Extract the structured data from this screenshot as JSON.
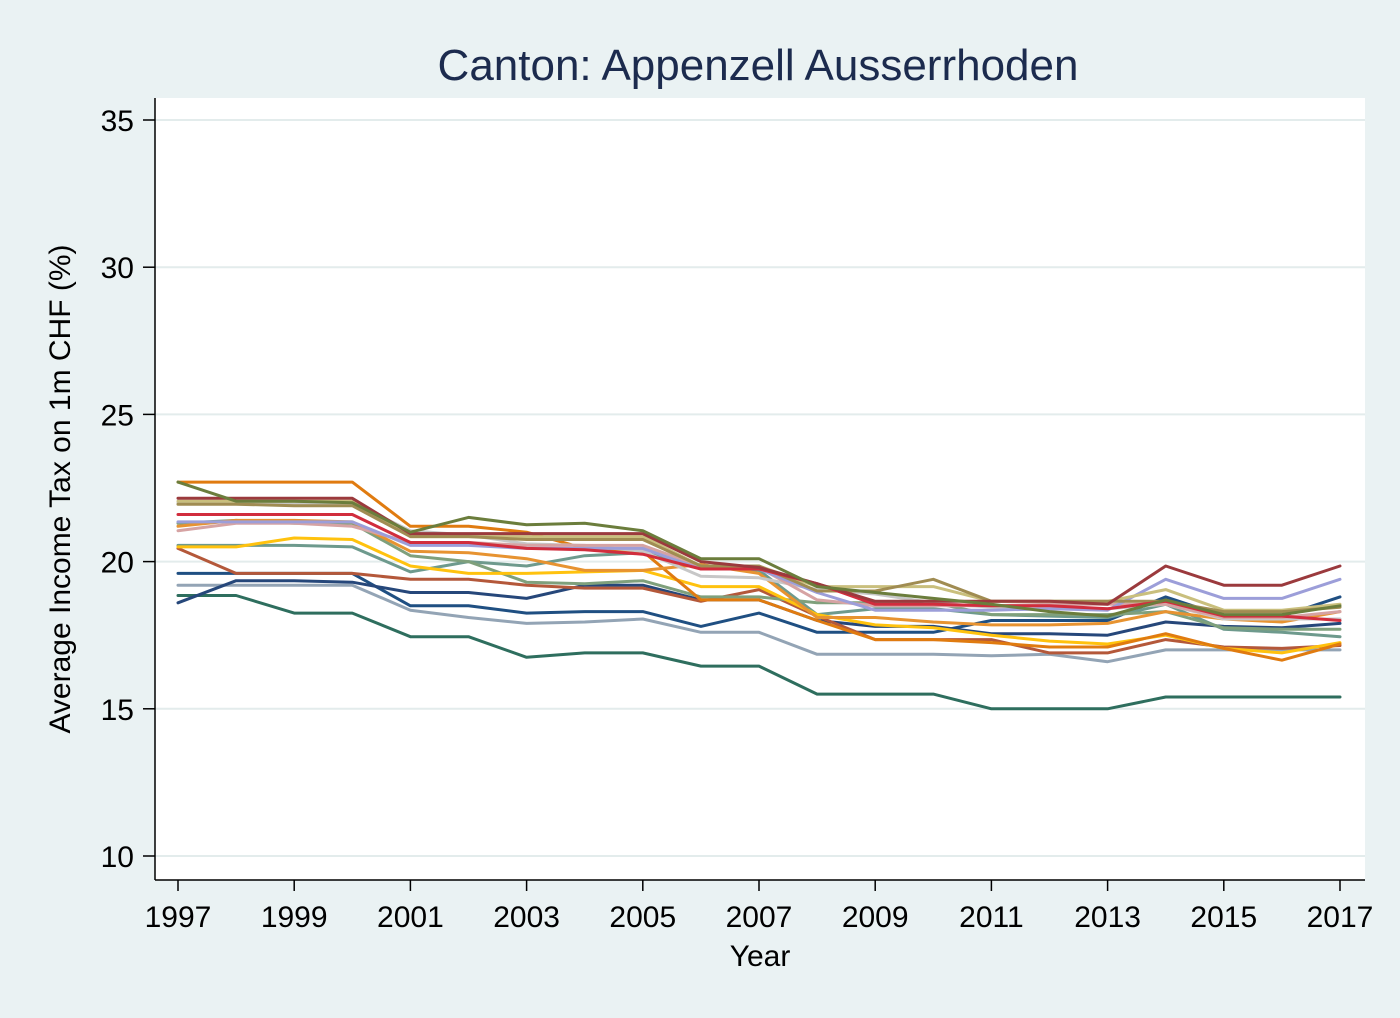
{
  "chart_data": {
    "type": "line",
    "title": "Canton: Appenzell Ausserrhoden",
    "xlabel": "Year",
    "ylabel": "Average Income Tax on 1m CHF (%)",
    "xlim": [
      1997,
      2017
    ],
    "ylim": [
      10,
      35
    ],
    "xticks": [
      "1997",
      "1999",
      "2001",
      "2003",
      "2005",
      "2007",
      "2009",
      "2011",
      "2013",
      "2015",
      "2017"
    ],
    "yticks": [
      "10",
      "15",
      "20",
      "25",
      "30",
      "35"
    ],
    "grid": true,
    "legend": "none",
    "x": [
      1997,
      1998,
      1999,
      2000,
      2001,
      2002,
      2003,
      2004,
      2005,
      2006,
      2007,
      2008,
      2009,
      2010,
      2011,
      2012,
      2013,
      2014,
      2015,
      2016,
      2017
    ],
    "series": [
      {
        "color": "#2e6e5e",
        "values": [
          18.85,
          18.85,
          18.25,
          18.25,
          17.45,
          17.45,
          16.75,
          16.9,
          16.9,
          16.45,
          16.45,
          15.5,
          15.5,
          15.5,
          15.0,
          15.0,
          15.0,
          15.4,
          15.4,
          15.4,
          15.4
        ]
      },
      {
        "color": "#93a4b5",
        "values": [
          19.2,
          19.2,
          19.2,
          19.2,
          18.35,
          18.1,
          17.9,
          17.95,
          18.05,
          17.6,
          17.6,
          16.85,
          16.85,
          16.85,
          16.8,
          16.85,
          16.6,
          17.0,
          17.0,
          17.0,
          17.0
        ]
      },
      {
        "color": "#1f4f82",
        "values": [
          19.6,
          19.6,
          19.6,
          19.6,
          18.5,
          18.5,
          18.25,
          18.3,
          18.3,
          17.8,
          18.25,
          17.6,
          17.6,
          17.6,
          18.0,
          18.0,
          18.0,
          18.8,
          18.15,
          18.15,
          18.8
        ]
      },
      {
        "color": "#26477a",
        "values": [
          18.6,
          19.35,
          19.35,
          19.3,
          18.95,
          18.95,
          18.75,
          19.2,
          19.2,
          18.7,
          18.7,
          18.0,
          17.8,
          17.8,
          17.55,
          17.55,
          17.5,
          17.95,
          17.8,
          17.75,
          17.9
        ]
      },
      {
        "color": "#b4583a",
        "values": [
          20.45,
          19.6,
          19.6,
          19.6,
          19.4,
          19.4,
          19.2,
          19.1,
          19.1,
          18.65,
          19.05,
          18.15,
          17.35,
          17.35,
          17.35,
          16.9,
          16.9,
          17.35,
          17.1,
          17.05,
          17.15
        ]
      },
      {
        "color": "#6e9a8d",
        "values": [
          20.55,
          20.55,
          20.55,
          20.5,
          19.65,
          20.0,
          19.85,
          20.2,
          20.3,
          19.85,
          19.7,
          18.2,
          18.4,
          18.4,
          18.2,
          18.15,
          18.1,
          18.55,
          17.7,
          17.6,
          17.45
        ]
      },
      {
        "color": "#7fa07c",
        "values": [
          21.3,
          21.4,
          21.3,
          21.3,
          20.2,
          20.0,
          19.3,
          19.25,
          19.35,
          18.8,
          18.8,
          18.6,
          18.6,
          18.6,
          18.2,
          18.2,
          18.2,
          18.3,
          17.75,
          17.7,
          17.7
        ]
      },
      {
        "color": "#ffc20e",
        "values": [
          20.5,
          20.5,
          20.8,
          20.75,
          19.85,
          19.6,
          19.6,
          19.65,
          19.7,
          19.15,
          19.15,
          18.2,
          17.85,
          17.75,
          17.5,
          17.3,
          17.2,
          17.5,
          17.05,
          16.9,
          17.25
        ]
      },
      {
        "color": "#e07b10",
        "values": [
          22.7,
          22.7,
          22.7,
          22.7,
          21.2,
          21.2,
          21.0,
          20.45,
          20.35,
          18.7,
          18.7,
          18.0,
          17.35,
          17.35,
          17.25,
          17.1,
          17.1,
          17.55,
          17.05,
          16.65,
          17.2
        ]
      },
      {
        "color": "#e79331",
        "values": [
          21.2,
          21.4,
          21.4,
          21.35,
          20.35,
          20.3,
          20.1,
          19.7,
          19.7,
          19.9,
          19.6,
          18.1,
          18.1,
          17.95,
          17.85,
          17.85,
          17.9,
          18.3,
          18.05,
          17.95,
          18.3
        ]
      },
      {
        "color": "#c7c7c7",
        "values": [
          22.0,
          22.0,
          21.95,
          22.0,
          21.05,
          20.9,
          20.6,
          20.55,
          20.35,
          19.5,
          19.45,
          19.05,
          18.9,
          18.6,
          18.45,
          18.4,
          18.4,
          18.55,
          18.05,
          18.05,
          18.05
        ]
      },
      {
        "color": "#d6a3a3",
        "values": [
          21.05,
          21.3,
          21.3,
          21.2,
          20.65,
          20.65,
          20.55,
          20.55,
          20.55,
          19.85,
          19.8,
          18.7,
          18.5,
          18.5,
          18.5,
          18.55,
          18.55,
          18.55,
          18.1,
          18.1,
          18.3
        ]
      },
      {
        "color": "#9c9ed9",
        "values": [
          21.35,
          21.35,
          21.35,
          21.35,
          20.55,
          20.55,
          20.45,
          20.45,
          20.45,
          19.75,
          19.75,
          18.95,
          18.35,
          18.35,
          18.35,
          18.4,
          18.35,
          19.4,
          18.75,
          18.75,
          19.4
        ]
      },
      {
        "color": "#c9bf7d",
        "values": [
          22.05,
          22.05,
          22.05,
          22.05,
          20.85,
          20.85,
          20.85,
          20.85,
          20.85,
          19.85,
          19.85,
          19.15,
          19.15,
          19.15,
          18.65,
          18.65,
          18.65,
          19.05,
          18.35,
          18.35,
          18.55
        ]
      },
      {
        "color": "#a08c52",
        "values": [
          21.95,
          21.95,
          21.9,
          21.9,
          20.85,
          20.85,
          20.75,
          20.75,
          20.75,
          19.85,
          19.85,
          19.0,
          19.0,
          19.4,
          18.65,
          18.65,
          18.65,
          18.65,
          18.3,
          18.3,
          18.45
        ]
      },
      {
        "color": "#d12d3d",
        "values": [
          21.6,
          21.6,
          21.6,
          21.6,
          20.65,
          20.65,
          20.45,
          20.4,
          20.25,
          19.75,
          19.75,
          19.25,
          18.55,
          18.55,
          18.5,
          18.5,
          18.4,
          18.65,
          18.15,
          18.15,
          18.0
        ]
      },
      {
        "color": "#9b3a3d",
        "values": [
          22.15,
          22.15,
          22.15,
          22.15,
          20.95,
          20.95,
          20.95,
          20.95,
          20.95,
          20.0,
          19.8,
          19.25,
          18.65,
          18.65,
          18.65,
          18.65,
          18.55,
          19.85,
          19.2,
          19.2,
          19.85
        ]
      },
      {
        "color": "#6b7d3c",
        "values": [
          22.7,
          22.05,
          22.05,
          22.0,
          21.0,
          21.5,
          21.25,
          21.3,
          21.05,
          20.1,
          20.1,
          19.15,
          18.95,
          18.75,
          18.55,
          18.3,
          18.15,
          18.7,
          18.2,
          18.2,
          18.5
        ]
      }
    ]
  }
}
